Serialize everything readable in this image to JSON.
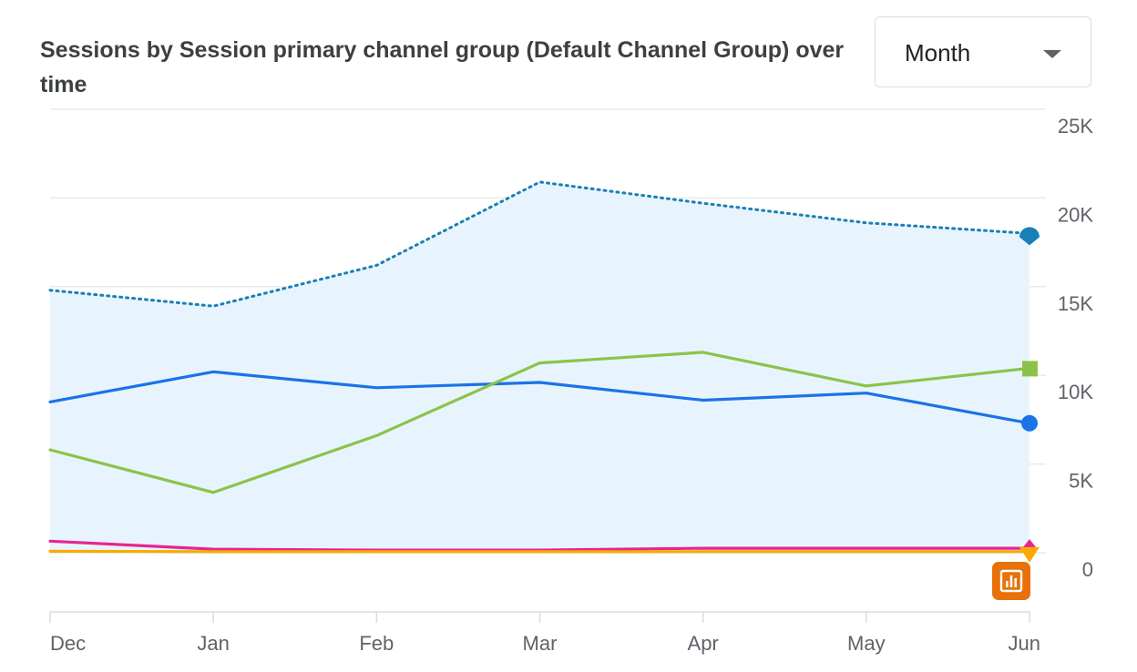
{
  "header": {
    "title": "Sessions by Session primary channel group (Default Channel Group) over time"
  },
  "granularity": {
    "selected": "Month"
  },
  "icons": {
    "dropdown": "chevron-down-icon",
    "insights": "bar-chart-icon"
  },
  "colors": {
    "total": "#1a7fb5",
    "area": "#e8f4fd",
    "blue": "#1a73e8",
    "green": "#8bc34a",
    "pink": "#e52592",
    "yellow": "#f9ab00",
    "orange": "#e8710a",
    "grid": "#e8eaed",
    "axis": "#5f6368"
  },
  "chart_data": {
    "type": "line",
    "categories": [
      "Dec",
      "Jan",
      "Feb",
      "Mar",
      "Apr",
      "May",
      "Jun"
    ],
    "y_ticks": [
      {
        "value": 0,
        "label": "0"
      },
      {
        "value": 5000,
        "label": "5K"
      },
      {
        "value": 10000,
        "label": "10K"
      },
      {
        "value": 15000,
        "label": "15K"
      },
      {
        "value": 20000,
        "label": "20K"
      },
      {
        "value": 25000,
        "label": "25K"
      }
    ],
    "ylim": [
      0,
      25000
    ],
    "grid": true,
    "series": [
      {
        "key": "total",
        "style": "dotted-area",
        "marker": "pin",
        "values": [
          14800,
          13900,
          16200,
          20900,
          19700,
          18600,
          18000
        ]
      },
      {
        "key": "blue",
        "style": "solid",
        "marker": "circle",
        "values": [
          8500,
          10200,
          9300,
          9600,
          8600,
          9000,
          7300
        ]
      },
      {
        "key": "green",
        "style": "solid",
        "marker": "square",
        "values": [
          5800,
          3400,
          6600,
          10700,
          11300,
          9400,
          10400
        ]
      },
      {
        "key": "pink",
        "style": "solid",
        "marker": "diamond",
        "values": [
          650,
          200,
          150,
          150,
          250,
          250,
          250
        ]
      },
      {
        "key": "yellow",
        "style": "solid",
        "marker": "triangle",
        "values": [
          80,
          60,
          60,
          60,
          60,
          60,
          60
        ]
      }
    ]
  }
}
